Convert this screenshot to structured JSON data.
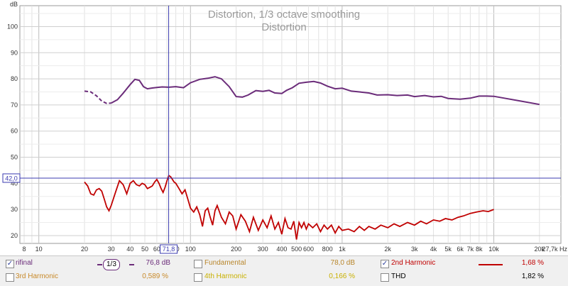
{
  "chart_data": {
    "type": "line",
    "title": "Distortion, 1/3 octave smoothing",
    "subtitle": "Distortion",
    "ylabel": "dB",
    "xscale": "log",
    "xlim": [
      7.5,
      27700
    ],
    "ylim": [
      17,
      108
    ],
    "grid": true,
    "y_ticks": [
      20,
      30,
      40,
      50,
      60,
      70,
      80,
      90,
      100
    ],
    "x_ticks": [
      {
        "value": 8,
        "label": "8"
      },
      {
        "value": 10,
        "label": "10"
      },
      {
        "value": 20,
        "label": "20"
      },
      {
        "value": 30,
        "label": "30"
      },
      {
        "value": 40,
        "label": "40"
      },
      {
        "value": 50,
        "label": "50"
      },
      {
        "value": 60,
        "label": "60"
      },
      {
        "value": 80,
        "label": "80"
      },
      {
        "value": 100,
        "label": "100"
      },
      {
        "value": 200,
        "label": "200"
      },
      {
        "value": 300,
        "label": "300"
      },
      {
        "value": 400,
        "label": "400"
      },
      {
        "value": 500,
        "label": "500"
      },
      {
        "value": 600,
        "label": "600"
      },
      {
        "value": 800,
        "label": "800"
      },
      {
        "value": 1000,
        "label": "1k"
      },
      {
        "value": 2000,
        "label": "2k"
      },
      {
        "value": 3000,
        "label": "3k"
      },
      {
        "value": 4000,
        "label": "4k"
      },
      {
        "value": 5000,
        "label": "5k"
      },
      {
        "value": 6000,
        "label": "6k"
      },
      {
        "value": 7000,
        "label": "7k"
      },
      {
        "value": 8000,
        "label": "8k"
      },
      {
        "value": 10000,
        "label": "10k"
      },
      {
        "value": 20000,
        "label": "20k"
      }
    ],
    "x_end_label": "27,7k Hz",
    "cursor": {
      "x_label": "71,8",
      "x": 71.8,
      "y_label": "42,0",
      "y": 42.0
    },
    "series": [
      {
        "name": "rifinal",
        "color": "#6b2c7a",
        "x": [
          20,
          22,
          24,
          26,
          28,
          30,
          33,
          36,
          40,
          43,
          46,
          49,
          52,
          56,
          60,
          65,
          72,
          80,
          90,
          100,
          115,
          130,
          145,
          160,
          180,
          200,
          220,
          240,
          270,
          300,
          330,
          360,
          400,
          430,
          470,
          520,
          580,
          650,
          720,
          800,
          900,
          1000,
          1150,
          1300,
          1500,
          1700,
          2000,
          2300,
          2700,
          3000,
          3500,
          4000,
          4500,
          5000,
          6000,
          7000,
          8000,
          9000,
          10000,
          12000,
          15000,
          20000
        ],
        "y": [
          75.3,
          75.0,
          73.5,
          71.5,
          70.6,
          70.7,
          72.0,
          74.5,
          77.8,
          79.8,
          79.4,
          77.0,
          76.2,
          76.5,
          76.7,
          76.9,
          76.8,
          77.0,
          76.6,
          78.5,
          79.8,
          80.2,
          80.8,
          80.0,
          77.0,
          73.2,
          73.0,
          73.8,
          75.5,
          75.2,
          75.6,
          74.6,
          74.4,
          75.6,
          76.6,
          78.3,
          78.7,
          79.0,
          78.4,
          77.2,
          76.2,
          76.4,
          75.3,
          75.0,
          74.6,
          73.8,
          73.9,
          73.6,
          73.8,
          73.2,
          73.6,
          73.1,
          73.3,
          72.5,
          72.2,
          72.6,
          73.4,
          73.4,
          73.3,
          72.5,
          71.5,
          70.2
        ]
      },
      {
        "name": "2nd Harmonic",
        "color": "#c00000",
        "x": [
          20,
          21,
          22,
          23,
          24,
          25,
          26,
          27,
          28,
          29,
          30,
          32,
          34,
          36,
          38,
          40,
          42,
          44,
          46,
          48,
          50,
          52,
          54,
          56,
          58,
          60,
          62,
          64,
          66,
          68,
          70,
          72,
          74,
          76,
          78,
          80,
          84,
          88,
          92,
          96,
          100,
          105,
          110,
          115,
          120,
          125,
          130,
          135,
          140,
          145,
          150,
          160,
          170,
          180,
          190,
          200,
          215,
          230,
          245,
          260,
          280,
          300,
          320,
          340,
          360,
          380,
          400,
          420,
          440,
          460,
          480,
          500,
          520,
          540,
          560,
          580,
          600,
          640,
          680,
          720,
          760,
          800,
          850,
          900,
          950,
          1000,
          1100,
          1200,
          1300,
          1400,
          1500,
          1650,
          1800,
          2000,
          2200,
          2400,
          2700,
          3000,
          3300,
          3600,
          4000,
          4400,
          4800,
          5300,
          5800,
          6300,
          7000,
          7700,
          8500,
          9200,
          10000
        ],
        "y": [
          40.5,
          39.0,
          36.0,
          35.5,
          37.5,
          38.0,
          37.0,
          34.0,
          31.0,
          29.5,
          31.5,
          36.5,
          41.0,
          39.5,
          36.0,
          40.0,
          41.0,
          39.5,
          39.0,
          40.0,
          39.5,
          38.0,
          38.5,
          39.0,
          40.5,
          41.5,
          40.0,
          38.0,
          36.5,
          38.5,
          41.0,
          43.0,
          42.5,
          41.5,
          40.5,
          40.0,
          38.0,
          36.0,
          37.5,
          34.0,
          30.5,
          29.0,
          31.0,
          28.0,
          23.5,
          29.5,
          30.5,
          27.0,
          24.0,
          29.5,
          31.5,
          27.0,
          24.5,
          29.0,
          27.5,
          22.5,
          28.0,
          25.5,
          21.5,
          27.0,
          22.0,
          26.0,
          23.0,
          27.5,
          22.5,
          25.0,
          20.5,
          26.5,
          23.0,
          22.5,
          25.5,
          18.5,
          25.0,
          23.0,
          25.0,
          22.5,
          24.5,
          23.0,
          24.5,
          21.5,
          24.0,
          22.5,
          24.0,
          21.0,
          23.5,
          22.0,
          22.5,
          21.5,
          23.5,
          22.0,
          23.5,
          22.5,
          24.0,
          23.0,
          24.5,
          23.5,
          25.0,
          24.0,
          25.5,
          24.5,
          26.0,
          25.5,
          26.5,
          26.0,
          27.0,
          27.5,
          28.5,
          29.0,
          29.5,
          29.2,
          30.0
        ]
      }
    ]
  },
  "legend": {
    "row1": [
      {
        "label": "rifinal",
        "checked": true,
        "smoothing": "1/3",
        "value": "76,8 dB",
        "color": "#6b2c7a"
      },
      {
        "label": "Fundamental",
        "checked": false,
        "value": "78,0 dB",
        "color": "#b8862b"
      },
      {
        "label": "2nd Harmonic",
        "checked": true,
        "value": "1,68 %",
        "color": "#c00000"
      }
    ],
    "row2": [
      {
        "label": "3rd Harmonic",
        "checked": false,
        "value": "0,589 %",
        "color": "#c88a2b"
      },
      {
        "label": "4th Harmonic",
        "checked": false,
        "value": "0,166 %",
        "color": "#c8b000"
      },
      {
        "label": "THD",
        "checked": false,
        "value": "1,82 %",
        "color": "#000000"
      }
    ]
  }
}
